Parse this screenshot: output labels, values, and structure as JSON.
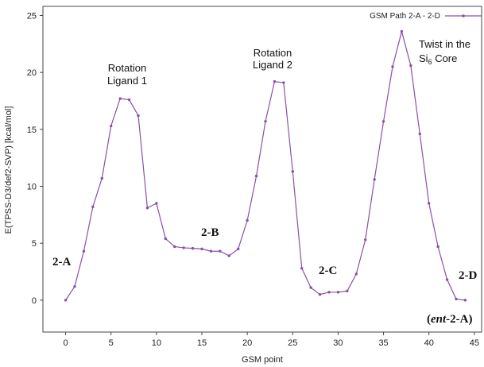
{
  "chart_data": {
    "type": "line",
    "xlabel": "GSM point",
    "ylabel": "E(TPSS-D3/def2-SVP) [kcal/mol]",
    "xlim": [
      -2.5,
      45.8
    ],
    "ylim": [
      -2.8,
      25.8
    ],
    "xticks": [
      0,
      5,
      10,
      15,
      20,
      25,
      30,
      35,
      40,
      45
    ],
    "yticks": [
      0,
      5,
      10,
      15,
      20,
      25
    ],
    "grid": false,
    "legend_position": "top-right",
    "color": "#8B50A8",
    "series": [
      {
        "name": "GSM Path 2-A - 2-D",
        "x": [
          0,
          1,
          2,
          3,
          4,
          5,
          6,
          7,
          8,
          9,
          10,
          11,
          12,
          13,
          14,
          15,
          16,
          17,
          18,
          19,
          20,
          21,
          22,
          23,
          24,
          25,
          26,
          27,
          28,
          29,
          30,
          31,
          32,
          33,
          34,
          35,
          36,
          37,
          38,
          39,
          40,
          41,
          42,
          43,
          44
        ],
        "y": [
          0,
          1.2,
          4.3,
          8.2,
          10.7,
          15.3,
          17.7,
          17.6,
          16.2,
          8.1,
          8.5,
          5.4,
          4.7,
          4.6,
          4.55,
          4.5,
          4.3,
          4.3,
          3.9,
          4.5,
          7.0,
          10.9,
          15.7,
          19.2,
          19.1,
          11.3,
          2.8,
          1.1,
          0.5,
          0.7,
          0.7,
          0.8,
          2.3,
          5.3,
          10.6,
          15.7,
          20.5,
          23.6,
          20.6,
          14.6,
          8.5,
          4.7,
          1.8,
          0.1,
          0.0
        ]
      }
    ],
    "annotations": {
      "rot1_line1": "Rotation",
      "rot1_line2": "Ligand 1",
      "rot2_line1": "Rotation",
      "rot2_line2": "Ligand 2",
      "twist_line1": "Twist in the",
      "twist_si": "Si",
      "twist_sub": "6",
      "twist_core": " Core",
      "label_2a": "2-A",
      "label_2b": "2-B",
      "label_2c": "2-C",
      "label_2d": "2-D",
      "ent_open": "(",
      "ent_italic": "ent",
      "ent_rest": "-2-A)"
    }
  }
}
